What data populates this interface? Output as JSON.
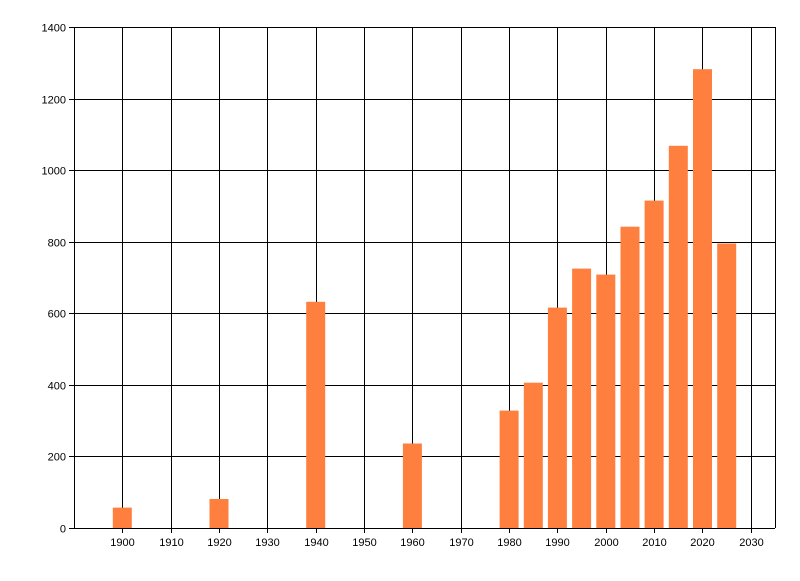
{
  "chart_data": {
    "type": "bar",
    "title": "",
    "xlabel": "",
    "ylabel": "",
    "x": [
      1900,
      1920,
      1940,
      1960,
      1980,
      1985,
      1990,
      1995,
      2000,
      2005,
      2010,
      2015,
      2020,
      2025
    ],
    "values": [
      57,
      81,
      632,
      236,
      328,
      406,
      616,
      725,
      708,
      842,
      915,
      1068,
      1282,
      795
    ],
    "xlim": [
      1890,
      2035
    ],
    "ylim": [
      0,
      1400
    ],
    "x_ticks": [
      1900,
      1910,
      1920,
      1930,
      1940,
      1950,
      1960,
      1970,
      1980,
      1990,
      2000,
      2010,
      2020,
      2030
    ],
    "y_ticks": [
      0,
      200,
      400,
      600,
      800,
      1000,
      1200,
      1400
    ],
    "grid": true,
    "bar_color": "#ff7f3f"
  }
}
